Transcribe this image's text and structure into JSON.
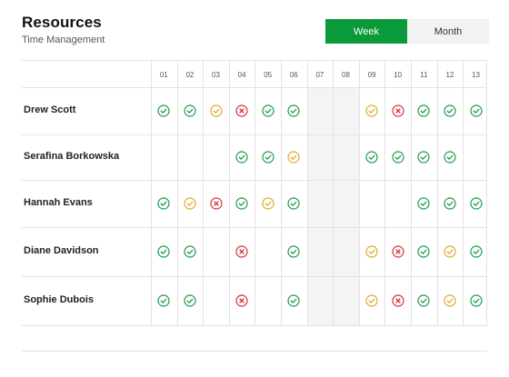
{
  "header": {
    "title": "Resources",
    "subtitle": "Time Management"
  },
  "view_toggle": {
    "week_label": "Week",
    "month_label": "Month",
    "selected": "Week"
  },
  "colors": {
    "accent": "#0b9a3a",
    "ok": "#1e9a4a",
    "pending": "#e0a92a",
    "rejected": "#d6303a"
  },
  "days": [
    "01",
    "02",
    "03",
    "04",
    "05",
    "06",
    "07",
    "08",
    "09",
    "10",
    "11",
    "12",
    "13"
  ],
  "weekend_days": [
    "07",
    "08"
  ],
  "people": [
    {
      "name": "Drew Scott",
      "status": [
        "ok",
        "ok",
        "pending",
        "rejected",
        "ok",
        "ok",
        "",
        "",
        "pending",
        "rejected",
        "ok",
        "ok",
        "ok"
      ]
    },
    {
      "name": "Serafina Borkowska",
      "status": [
        "",
        "",
        "",
        "ok",
        "ok",
        "pending",
        "",
        "",
        "ok",
        "ok",
        "ok",
        "ok",
        ""
      ]
    },
    {
      "name": "Hannah Evans",
      "status": [
        "ok",
        "pending",
        "rejected",
        "ok",
        "pending",
        "ok",
        "",
        "",
        "",
        "",
        "ok",
        "ok",
        "ok"
      ]
    },
    {
      "name": "Diane Davidson",
      "status": [
        "ok",
        "ok",
        "",
        "rejected",
        "",
        "ok",
        "",
        "",
        "pending",
        "rejected",
        "ok",
        "pending",
        "ok"
      ]
    },
    {
      "name": "Sophie Dubois",
      "status": [
        "ok",
        "ok",
        "",
        "rejected",
        "",
        "ok",
        "",
        "",
        "pending",
        "rejected",
        "ok",
        "pending",
        "ok"
      ]
    }
  ]
}
